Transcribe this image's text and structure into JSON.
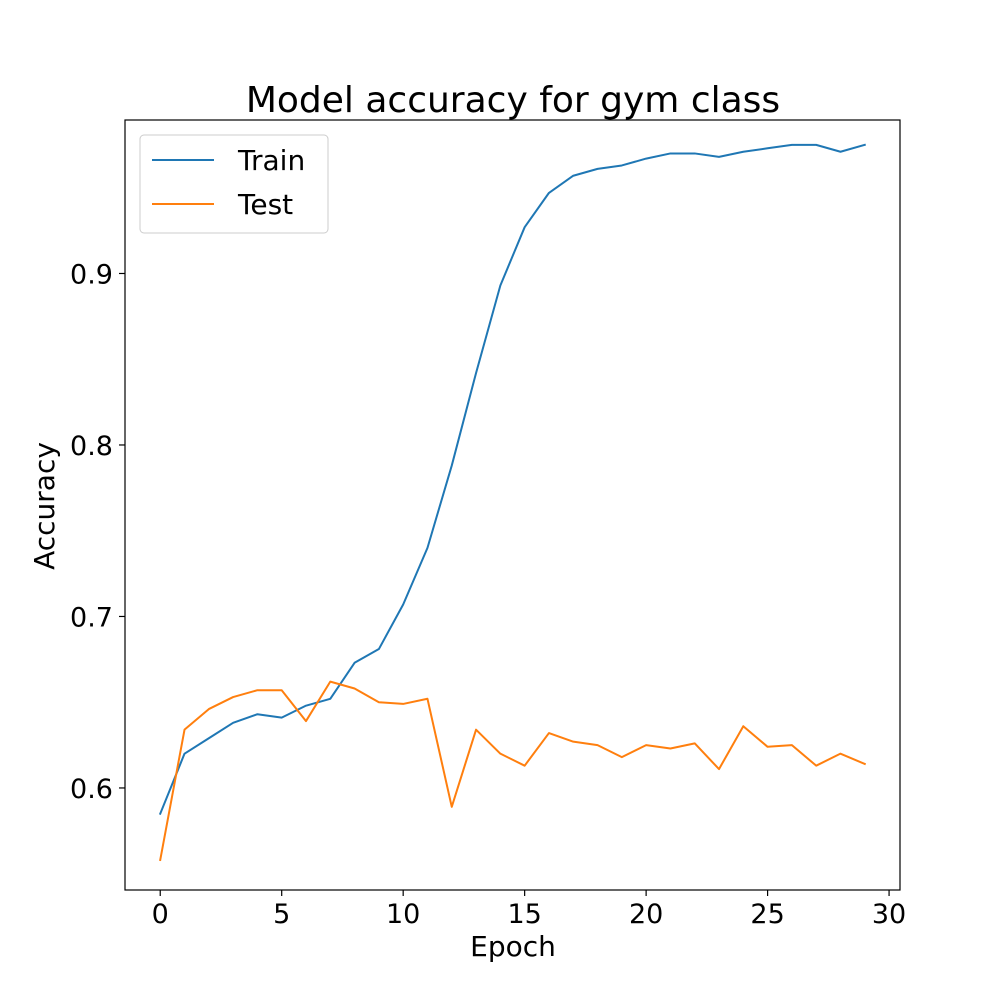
{
  "chart_data": {
    "type": "line",
    "title": "Model accuracy for gym class",
    "xlabel": "Epoch",
    "ylabel": "Accuracy",
    "xlim": [
      -1.45,
      30.45
    ],
    "ylim": [
      0.5405,
      0.9895
    ],
    "xticks": [
      0,
      5,
      10,
      15,
      20,
      25,
      30
    ],
    "xtick_labels": [
      "0",
      "5",
      "10",
      "15",
      "20",
      "25",
      "30"
    ],
    "yticks": [
      0.6,
      0.7,
      0.8,
      0.9
    ],
    "ytick_labels": [
      "0.6",
      "0.7",
      "0.8",
      "0.9"
    ],
    "grid": false,
    "legend_position": "upper-left",
    "x": [
      0,
      1,
      2,
      3,
      4,
      5,
      6,
      7,
      8,
      9,
      10,
      11,
      12,
      13,
      14,
      15,
      16,
      17,
      18,
      19,
      20,
      21,
      22,
      23,
      24,
      25,
      26,
      27,
      28,
      29
    ],
    "series": [
      {
        "name": "Train",
        "color": "#1f77b4",
        "values": [
          0.585,
          0.62,
          0.629,
          0.638,
          0.643,
          0.641,
          0.648,
          0.652,
          0.673,
          0.681,
          0.707,
          0.74,
          0.788,
          0.842,
          0.893,
          0.927,
          0.947,
          0.957,
          0.961,
          0.963,
          0.967,
          0.97,
          0.97,
          0.968,
          0.971,
          0.973,
          0.975,
          0.975,
          0.971,
          0.975
        ]
      },
      {
        "name": "Test",
        "color": "#ff7f0e",
        "values": [
          0.558,
          0.634,
          0.646,
          0.653,
          0.657,
          0.657,
          0.639,
          0.662,
          0.658,
          0.65,
          0.649,
          0.652,
          0.589,
          0.634,
          0.62,
          0.613,
          0.632,
          0.627,
          0.625,
          0.618,
          0.625,
          0.623,
          0.626,
          0.611,
          0.636,
          0.624,
          0.625,
          0.613,
          0.62,
          0.614
        ]
      }
    ]
  }
}
